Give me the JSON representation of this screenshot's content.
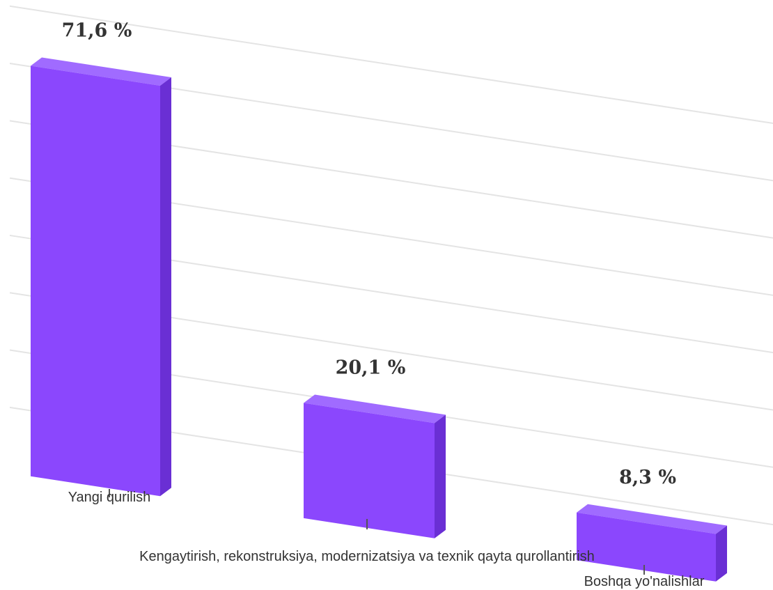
{
  "chart_data": {
    "type": "bar",
    "categories": [
      "Yangi qurilish",
      "Kengaytirish, rekonstruksiya, modernizatsiya va texnik qayta qurollantirish",
      "Boshqa yo'nalishlar"
    ],
    "values": [
      71.6,
      20.1,
      8.3
    ],
    "data_labels": [
      "71,6 %",
      "20,1 %",
      "8,3 %"
    ],
    "unit": "%",
    "ylim": [
      0,
      80
    ],
    "grid": true,
    "legend": "none",
    "colors": {
      "bar_front": "#8b47fd",
      "bar_top": "#a06bff",
      "bar_side": "#6a2fd4",
      "grid": "#e4e4e4"
    }
  }
}
